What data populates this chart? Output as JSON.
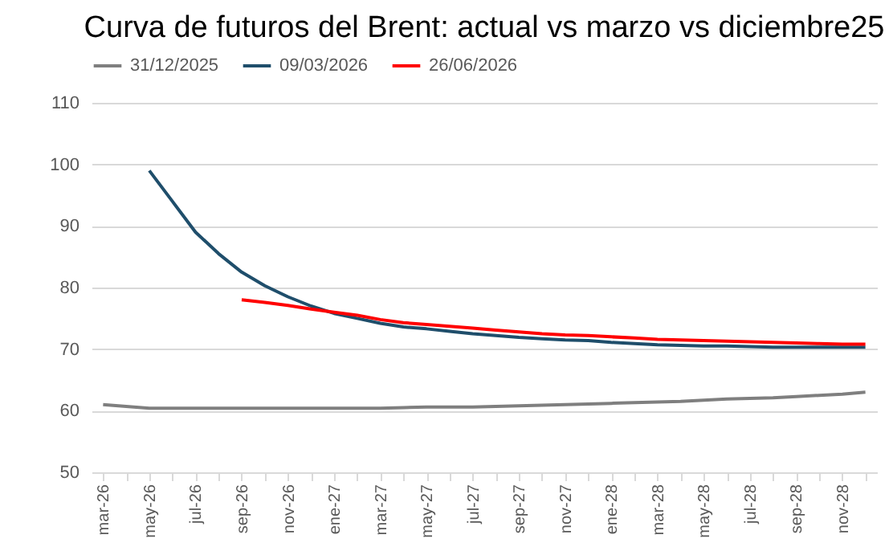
{
  "chart_data": {
    "type": "line",
    "title": "Curva de futuros del Brent: actual vs marzo vs  diciembre25",
    "categories": [
      "mar-26",
      null,
      "may-26",
      null,
      "jul-26",
      null,
      "sep-26",
      null,
      "nov-26",
      null,
      "ene-27",
      null,
      "mar-27",
      null,
      "may-27",
      null,
      "jul-27",
      null,
      "sep-27",
      null,
      "nov-27",
      null,
      "ene-28",
      null,
      "mar-28",
      null,
      "may-28",
      null,
      "jul-28",
      null,
      "sep-28",
      null,
      "nov-28",
      null
    ],
    "series": [
      {
        "name": "31/12/2025",
        "color": "#7f7f7f",
        "values": [
          61,
          60.7,
          60.4,
          60.4,
          60.4,
          60.4,
          60.4,
          60.4,
          60.4,
          60.4,
          60.4,
          60.4,
          60.4,
          60.5,
          60.6,
          60.6,
          60.6,
          60.7,
          60.8,
          60.9,
          61.0,
          61.1,
          61.2,
          61.3,
          61.4,
          61.5,
          61.7,
          61.9,
          62.0,
          62.1,
          62.3,
          62.5,
          62.7,
          63.0
        ]
      },
      {
        "name": "09/03/2026",
        "color": "#1f4e6b",
        "values": [
          null,
          null,
          99,
          94,
          89,
          85.5,
          82.5,
          80.3,
          78.5,
          77,
          75.8,
          75,
          74.2,
          73.6,
          73.3,
          72.9,
          72.5,
          72.2,
          71.9,
          71.7,
          71.5,
          71.4,
          71.1,
          70.9,
          70.7,
          70.6,
          70.5,
          70.5,
          70.4,
          70.3,
          70.3,
          70.3,
          70.3,
          70.3
        ]
      },
      {
        "name": "26/06/2026",
        "color": "#ff0000",
        "values": [
          null,
          null,
          null,
          null,
          null,
          null,
          78,
          77.6,
          77.1,
          76.5,
          76,
          75.5,
          74.8,
          74.3,
          74,
          73.7,
          73.4,
          73.1,
          72.8,
          72.5,
          72.3,
          72.2,
          72,
          71.8,
          71.6,
          71.5,
          71.4,
          71.3,
          71.2,
          71.1,
          71,
          70.9,
          70.8,
          70.8
        ]
      }
    ],
    "ylim": [
      50,
      110
    ],
    "yticks": [
      50,
      60,
      70,
      80,
      90,
      100,
      110
    ],
    "grid": "y",
    "legend": "top",
    "marker": "none",
    "line_style": "solid"
  }
}
